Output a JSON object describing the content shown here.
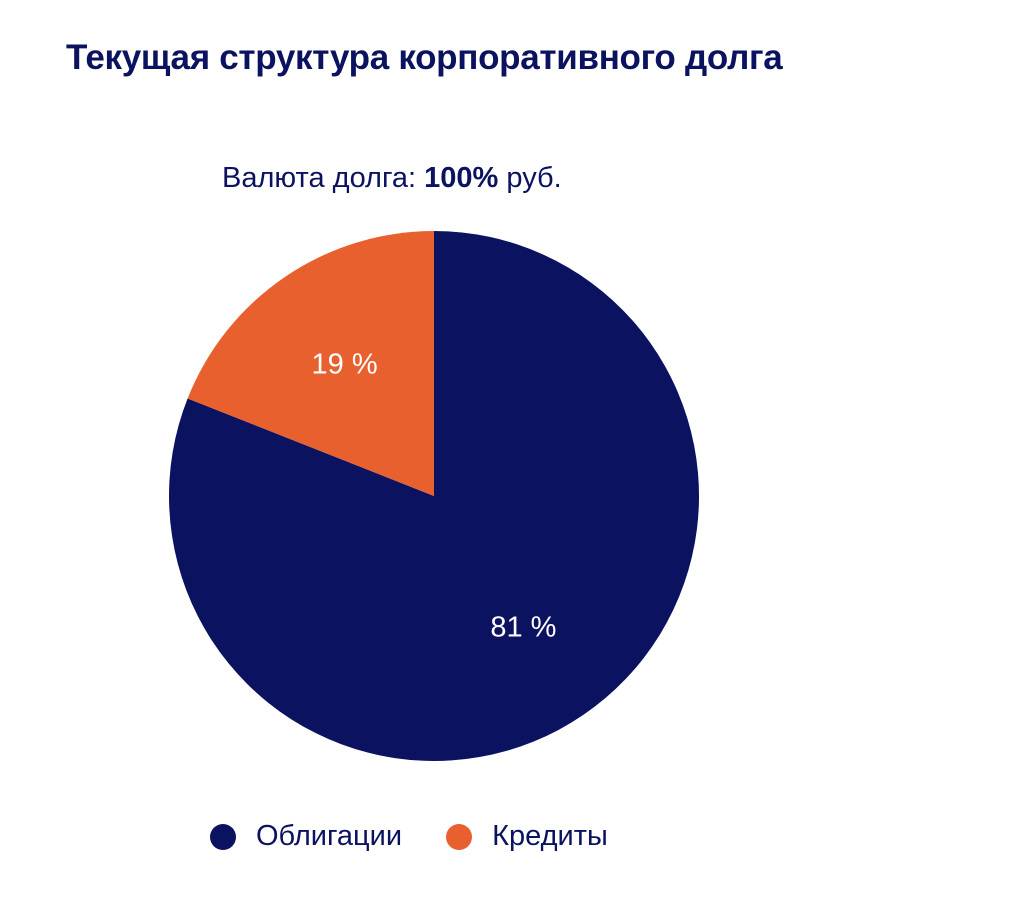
{
  "title": "Текущая структура корпоративного долга",
  "subtitle": {
    "prefix": "Валюта долга: ",
    "value": "100%",
    "suffix": " руб."
  },
  "chart_data": {
    "type": "pie",
    "title": "Текущая структура корпоративного долга",
    "slices": [
      {
        "label": "Облигации",
        "value": 81,
        "display": "81 %",
        "color": "#0b1260"
      },
      {
        "label": "Кредиты",
        "value": 19,
        "display": "19 %",
        "color": "#e9602f"
      }
    ],
    "start_angle_deg": 0,
    "direction": "clockwise",
    "legend_position": "bottom"
  }
}
